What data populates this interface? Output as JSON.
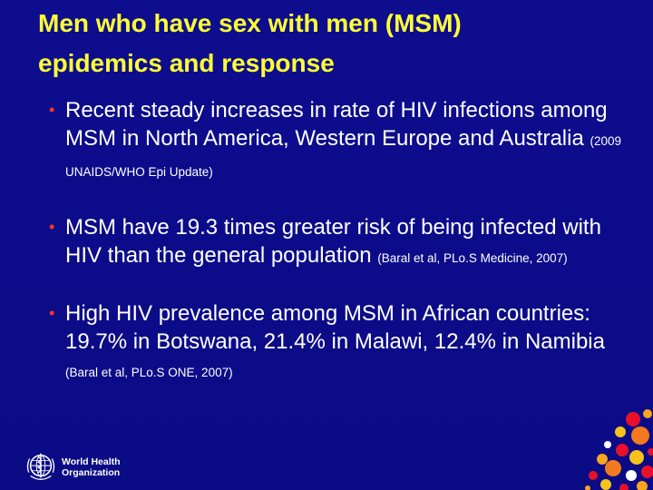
{
  "slide": {
    "title_line1": "Men who have sex with men (MSM)",
    "title_line2": "epidemics and response",
    "bullets": [
      {
        "main": "Recent steady increases in rate of HIV infections among MSM in North America, Western Europe and Australia",
        "cite": "(2009 UNAIDS/WHO Epi Update)"
      },
      {
        "main": "MSM have 19.3 times greater risk of being infected with HIV than the general population",
        "cite": "(Baral et al, PLo.S Medicine, 2007)"
      },
      {
        "main": "High HIV prevalence among MSM in African countries: 19.7% in Botswana, 21.4% in Malawi, 12.4% in Namibia",
        "cite": "(Baral et al, PLo.S ONE, 2007)"
      }
    ]
  },
  "logo": {
    "line1": "World Health",
    "line2": "Organization"
  },
  "colors": {
    "background": "#0c0c8a",
    "title": "#ffff33",
    "text": "#ffffff",
    "bullet": "#ff3322"
  },
  "icons": {
    "logo": "who-emblem-icon",
    "decoration": "colored-dots-decoration"
  }
}
